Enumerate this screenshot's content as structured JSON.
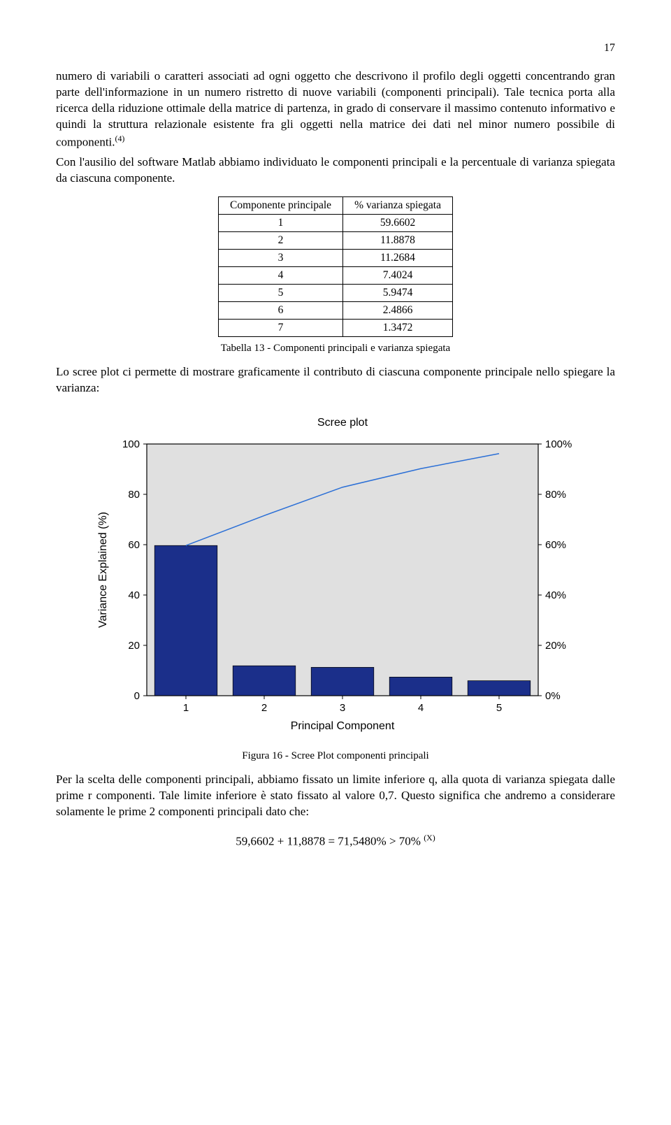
{
  "page_number": "17",
  "paragraph1": "numero di variabili o caratteri associati ad ogni oggetto che descrivono il profilo degli oggetti concentrando gran parte dell'informazione in un numero ristretto di nuove variabili (componenti principali). Tale tecnica porta alla ricerca della riduzione ottimale della matrice di partenza, in grado di conservare il massimo contenuto informativo e quindi la struttura relazionale esistente fra gli oggetti nella matrice dei dati nel minor numero possibile di componenti.",
  "paragraph1_sup": "(4)",
  "paragraph1b": "Con l'ausilio del software Matlab abbiamo individuato le componenti principali e la percentuale di varianza spiegata da ciascuna componente.",
  "table": {
    "columns": [
      "Componente principale",
      "% varianza spiegata"
    ],
    "rows": [
      [
        "1",
        "59.6602"
      ],
      [
        "2",
        "11.8878"
      ],
      [
        "3",
        "11.2684"
      ],
      [
        "4",
        "7.4024"
      ],
      [
        "5",
        "5.9474"
      ],
      [
        "6",
        "2.4866"
      ],
      [
        "7",
        "1.3472"
      ]
    ]
  },
  "table_caption": "Tabella 13 - Componenti principali e varianza spiegata",
  "paragraph2": "Lo scree plot ci permette di mostrare graficamente il contributo di ciascuna componente principale nello spiegare la varianza:",
  "chart": {
    "type": "bar+line",
    "title": "Scree plot",
    "xlabel": "Principal Component",
    "ylabel_left": "Variance Explained (%)",
    "y_ticks_left": [
      0,
      20,
      40,
      60,
      80,
      100
    ],
    "y_ticks_right": [
      "0%",
      "20%",
      "40%",
      "60%",
      "80%",
      "100%"
    ],
    "x_ticks": [
      1,
      2,
      3,
      4,
      5
    ],
    "bars": [
      59.66,
      11.89,
      11.27,
      7.4,
      5.95
    ],
    "line_cumulative": [
      59.66,
      71.55,
      82.82,
      90.22,
      96.17
    ],
    "bar_color": "#1b2f8a",
    "line_color": "#2b6fd6",
    "plot_bg": "#e0e0e0",
    "axis_color": "#000000",
    "grid_color": "#000000",
    "ylim": [
      0,
      100
    ],
    "bar_width": 0.8
  },
  "figure_caption": "Figura 16 - Scree Plot componenti principali",
  "paragraph3": "Per la scelta delle componenti principali, abbiamo fissato un limite inferiore q, alla quota di varianza spiegata dalle prime r componenti. Tale limite inferiore è stato fissato al valore 0,7. Questo significa che andremo a considerare solamente le prime 2 componenti principali dato che:",
  "equation": "59,6602 + 11,8878 = 71,5480% > 70%",
  "equation_sup": "(X)"
}
